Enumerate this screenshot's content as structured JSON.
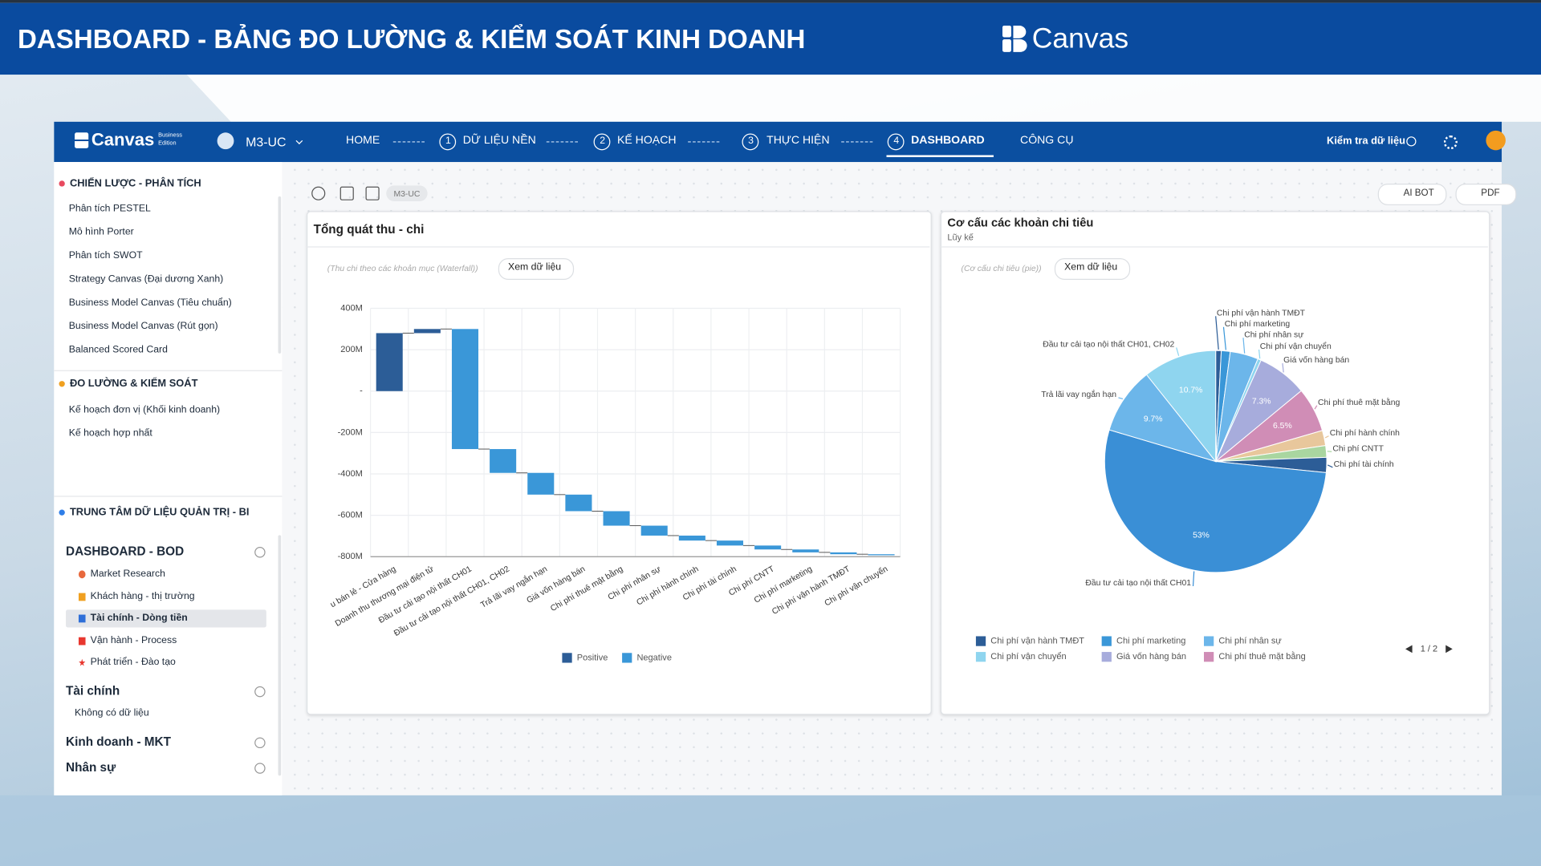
{
  "header": {
    "title": "DASHBOARD - BẢNG ĐO LƯỜNG & KIỂM SOÁT KINH DOANH",
    "brand": "Canvas"
  },
  "app_nav": {
    "brand": "Canvas",
    "edition": [
      "Business",
      "Edition"
    ],
    "user": "M3-UC",
    "home": "HOME",
    "steps": [
      {
        "number": "1",
        "label": "DỮ LIỆU NỀN"
      },
      {
        "number": "2",
        "label": "KẾ HOẠCH"
      },
      {
        "number": "3",
        "label": "THỰC HIỆN"
      },
      {
        "number": "4",
        "label": "DASHBOARD"
      }
    ],
    "tools": "CÔNG CỤ",
    "check_data": "Kiểm tra dữ liệu"
  },
  "sidebar": {
    "sections": [
      {
        "title": "CHIẾN LƯỢC - PHÂN TÍCH",
        "items": [
          "Phân tích PESTEL",
          "Mô hình Porter",
          "Phân tích SWOT",
          "Strategy Canvas (Đại dương Xanh)",
          "Business Model Canvas (Tiêu chuẩn)",
          "Business Model Canvas (Rút gọn)",
          "Balanced Scored Card"
        ]
      },
      {
        "title": "ĐO LƯỜNG & KIỂM SOÁT",
        "items": [
          "Kế hoạch đơn vị (Khối kinh doanh)",
          "Kế hoạch hợp nhất"
        ]
      },
      {
        "title": "TRUNG TÂM DỮ LIỆU QUẢN TRỊ - BI",
        "groups": [
          {
            "title": "DASHBOARD - BOD",
            "items": [
              "Market Research",
              "Khách hàng - thị trường",
              "Tài chính - Dòng tiền",
              "Vận hành - Process",
              "Phát triển - Đào tạo"
            ]
          },
          {
            "title": "Tài chính",
            "items": [
              "Không có dữ liệu"
            ]
          },
          {
            "title": "Kinh doanh - MKT"
          },
          {
            "title": "Nhân sự"
          }
        ]
      }
    ]
  },
  "toolbar": {
    "tag": "M3-UC",
    "buttons": [
      "AI BOT",
      "PDF"
    ]
  },
  "chart_data": [
    {
      "type": "waterfall",
      "title": "Tổng quát thu - chi",
      "note": "(Thu chi theo các khoản mục (Waterfall))",
      "button": "Xem dữ liệu",
      "categories": [
        "u bán lẻ - Cửa hàng",
        "Doanh thu thương mại điện tử",
        "Đầu tư cải tạo nội thất CH01",
        "Đầu tư cải tạo nội thất CH01, CH02",
        "Trả lãi vay ngắn hạn",
        "Giá vốn hàng bán",
        "Chi phí thuê mặt bằng",
        "Chi phí nhân sự",
        "Chi phí hành chính",
        "Chi phí tài chính",
        "Chi phí CNTT",
        "Chi phí marketing",
        "Chi phí vận hành TMĐT",
        "Chi phí vận chuyển"
      ],
      "series": [
        {
          "name": "Positive",
          "color": "#2c5d97",
          "values": [
            280,
            20,
            null,
            null,
            null,
            null,
            null,
            null,
            null,
            null,
            null,
            null,
            null,
            null
          ]
        },
        {
          "name": "Negative",
          "color": "#3a97d8",
          "values": [
            null,
            null,
            -580,
            -115,
            -105,
            -80,
            -70,
            -48,
            -24,
            -24,
            -19,
            -14,
            -9,
            -5
          ]
        }
      ],
      "ylim": [
        -800,
        400
      ],
      "yticks": [
        {
          "value": 400,
          "label": "400M"
        },
        {
          "value": 200,
          "label": "200M"
        },
        {
          "value": 0,
          "label": "-"
        },
        {
          "value": -200,
          "label": "-200M"
        },
        {
          "value": -400,
          "label": "-400M"
        },
        {
          "value": -600,
          "label": "-600M"
        },
        {
          "value": -800,
          "label": "-800M"
        }
      ],
      "grid": true,
      "legend": "bottom"
    },
    {
      "type": "pie",
      "title": "Cơ cấu các khoản chi tiêu",
      "subtitle": "Lũy kế",
      "note": "(Cơ cấu chi tiêu (pie))",
      "button": "Xem dữ liệu",
      "categories": [
        "Chi phí vận hành TMĐT",
        "Chi phí marketing",
        "Chi phí nhân sự",
        "Chi phí vận chuyển",
        "Giá vốn hàng bán",
        "Chi phí thuê mặt bằng",
        "Chi phí hành chính",
        "Chi phí CNTT",
        "Chi phí tài chính",
        "Đầu tư cải tạo nội thất CH01",
        "Trả lãi vay ngắn hạn",
        "Đầu tư cải tạo nội thất CH01, CH02"
      ],
      "values": [
        0.8,
        1.3,
        4.1,
        0.5,
        7.3,
        6.5,
        2.2,
        1.7,
        2.2,
        53,
        9.7,
        10.7
      ],
      "value_labels": [
        null,
        null,
        null,
        null,
        "7.3%",
        "6.5%",
        null,
        null,
        null,
        "53%",
        "9.7%",
        "10.7%"
      ],
      "colors": [
        "#2c5d97",
        "#3a97d8",
        "#6cb6ea",
        "#8fd5ef",
        "#a7acdc",
        "#d08db6",
        "#e8c79c",
        "#a9d6a0",
        "#2c5d97",
        "#3a8fd6",
        "#6cb6ea",
        "#8fd5ef"
      ],
      "legend": "bottom",
      "legend_page": "1 / 2"
    }
  ]
}
